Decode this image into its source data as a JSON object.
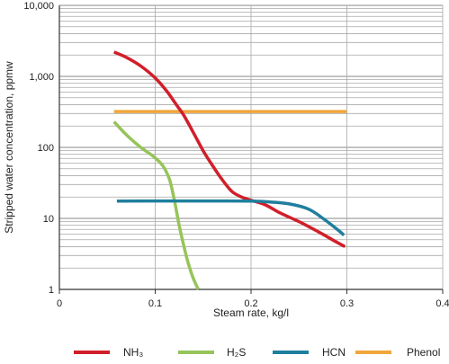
{
  "chart_data": {
    "type": "line",
    "xlabel": "Steam rate, kg/l",
    "ylabel": "Stripped water concentration, ppmw",
    "xlim": [
      0,
      0.4
    ],
    "ylim": [
      1,
      10000
    ],
    "y_scale": "log",
    "x_ticks": [
      0,
      0.1,
      0.2,
      0.3,
      0.4
    ],
    "x_tick_labels": [
      "0",
      "0.1",
      "0.2",
      "0.3",
      "0.4"
    ],
    "y_ticks": [
      1,
      10,
      100,
      1000,
      10000
    ],
    "y_tick_labels": [
      "1",
      "10",
      "100",
      "1,000",
      "10,000"
    ],
    "grid": true,
    "legend_position": "bottom",
    "series": [
      {
        "name": "NH₃",
        "color": "#d11f2a",
        "x": [
          0.057,
          0.07,
          0.085,
          0.1,
          0.112,
          0.122,
          0.13,
          0.14,
          0.15,
          0.16,
          0.17,
          0.18,
          0.19,
          0.2,
          0.215,
          0.23,
          0.25,
          0.27,
          0.285,
          0.298
        ],
        "y": [
          2200,
          1850,
          1400,
          950,
          620,
          400,
          280,
          160,
          90,
          55,
          35,
          24,
          20,
          18,
          15.5,
          12,
          9,
          6.5,
          5,
          4
        ]
      },
      {
        "name": "H₂S",
        "color": "#96c45a",
        "x": [
          0.057,
          0.07,
          0.085,
          0.098,
          0.108,
          0.115,
          0.12,
          0.125,
          0.13,
          0.135,
          0.14,
          0.145
        ],
        "y": [
          230,
          150,
          100,
          75,
          55,
          35,
          18,
          8,
          4,
          2.2,
          1.4,
          1
        ]
      },
      {
        "name": "HCN",
        "color": "#1f7f9e",
        "x": [
          0.06,
          0.1,
          0.15,
          0.2,
          0.22,
          0.24,
          0.26,
          0.275,
          0.29,
          0.297
        ],
        "y": [
          17.5,
          17.6,
          17.6,
          17.5,
          17,
          16,
          13.5,
          10,
          7,
          5.8
        ]
      },
      {
        "name": "Phenol",
        "color": "#f0a63a",
        "x": [
          0.057,
          0.3
        ],
        "y": [
          320,
          320
        ]
      }
    ]
  }
}
